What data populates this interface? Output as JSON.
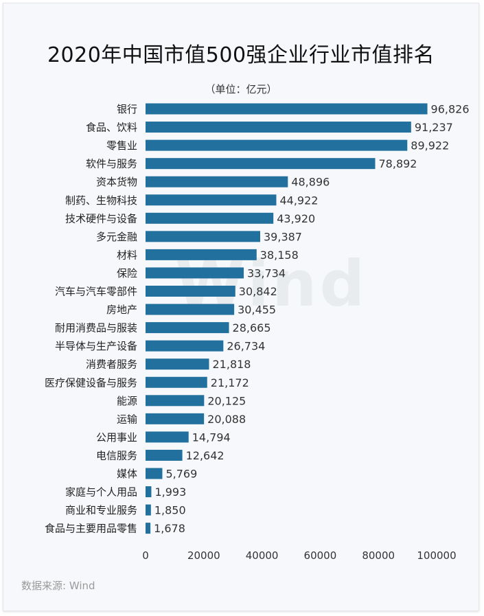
{
  "title": "2020年中国市值500强企业行业市值排名",
  "unit": "（单位：亿元）",
  "source": "数据来源: Wind",
  "watermark": "Wind",
  "chart_data": {
    "type": "bar",
    "orientation": "horizontal",
    "title": "2020年中国市值500强企业行业市值排名",
    "subtitle": "（单位：亿元）",
    "categories": [
      "银行",
      "食品、饮料",
      "零售业",
      "软件与服务",
      "资本货物",
      "制药、生物科技",
      "技术硬件与设备",
      "多元金融",
      "材料",
      "保险",
      "汽车与汽车零部件",
      "房地产",
      "耐用消费品与服装",
      "半导体与生产设备",
      "消费者服务",
      "医疗保健设备与服务",
      "能源",
      "运输",
      "公用事业",
      "电信服务",
      "媒体",
      "家庭与个人用品",
      "商业和专业服务",
      "食品与主要用品零售"
    ],
    "values": [
      96826,
      91237,
      89922,
      78892,
      48896,
      44922,
      43920,
      39387,
      38158,
      33734,
      30842,
      30455,
      28665,
      26734,
      21818,
      21172,
      20125,
      20088,
      14794,
      12642,
      5769,
      1993,
      1850,
      1678
    ],
    "value_labels": [
      "96,826",
      "91,237",
      "89,922",
      "78,892",
      "48,896",
      "44,922",
      "43,920",
      "39,387",
      "38,158",
      "33,734",
      "30,842",
      "30,455",
      "28,665",
      "26,734",
      "21,818",
      "21,172",
      "20,125",
      "20,088",
      "14,794",
      "12,642",
      "5,769",
      "1,993",
      "1,850",
      "1,678"
    ],
    "xlim": [
      0,
      100000
    ],
    "xticks": [
      0,
      20000,
      40000,
      60000,
      80000,
      100000
    ],
    "xtick_labels": [
      "0",
      "20000",
      "40000",
      "60000",
      "80000",
      "100000"
    ],
    "grid": false,
    "legend": "none",
    "bar_color": "#22709e"
  }
}
